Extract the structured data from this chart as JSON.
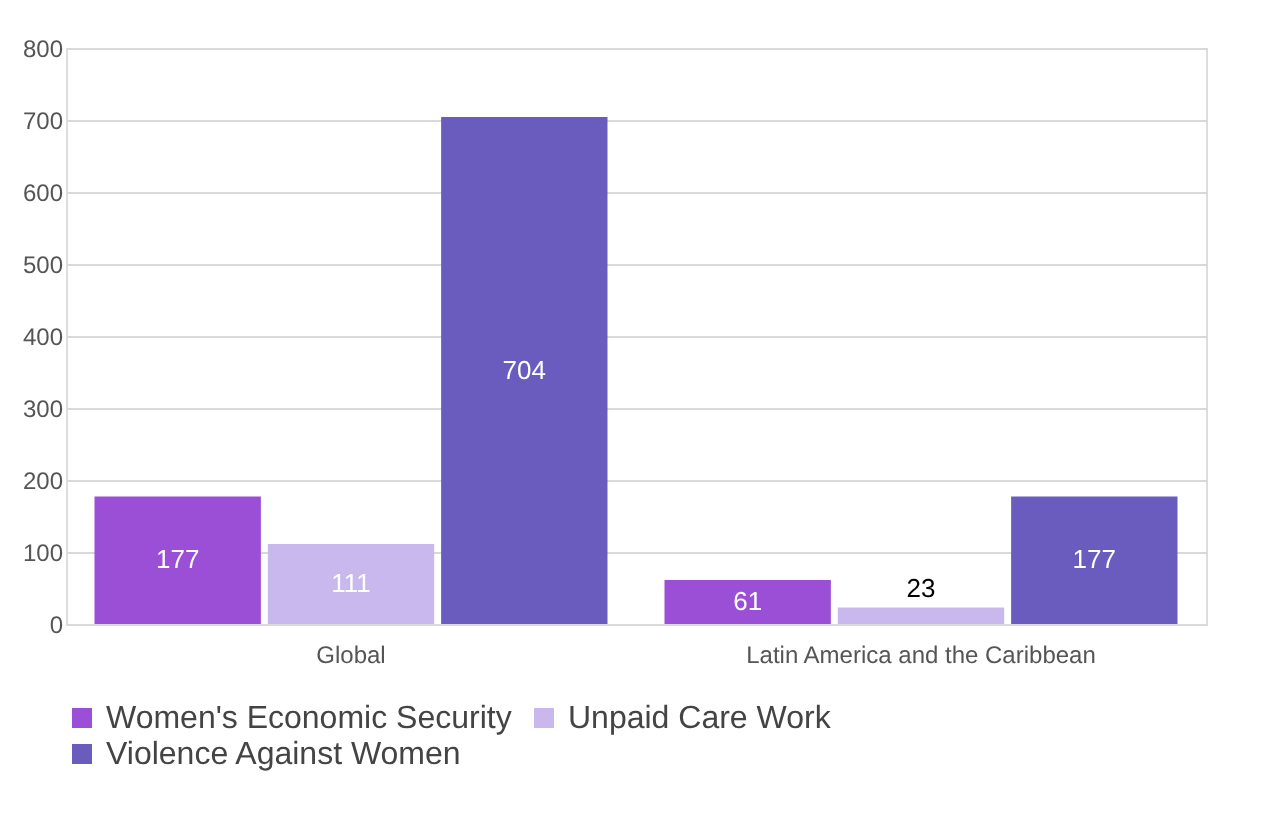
{
  "chart_data": {
    "type": "bar",
    "categories": [
      "Global",
      "Latin America and the Caribbean"
    ],
    "series": [
      {
        "name": "Women's Economic Security",
        "color": "#9b4fd6",
        "values": [
          177,
          61
        ]
      },
      {
        "name": "Unpaid Care Work",
        "color": "#c9b8ee",
        "values": [
          111,
          23
        ]
      },
      {
        "name": "Violence Against Women",
        "color": "#6a5cbe",
        "values": [
          704,
          177
        ]
      }
    ],
    "ylim": [
      0,
      800
    ],
    "yticks": [
      0,
      100,
      200,
      300,
      400,
      500,
      600,
      700,
      800
    ],
    "grid": "y",
    "legend": "bottom",
    "data_labels": true
  }
}
